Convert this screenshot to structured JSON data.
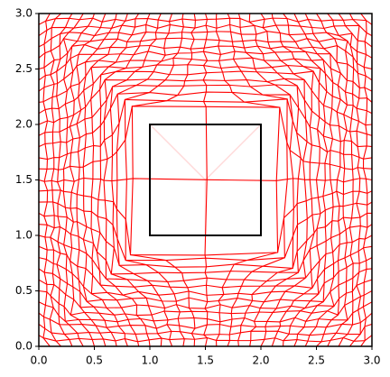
{
  "chart_data": {
    "type": "mesh",
    "xlim": [
      0,
      3
    ],
    "ylim": [
      0,
      3
    ],
    "xticks": [
      {
        "value": 0,
        "label": "0.0"
      },
      0.5,
      {
        "value": 1,
        "label": "1.0"
      },
      1.5,
      {
        "value": 2,
        "label": "2.0"
      },
      2.5,
      {
        "value": 3,
        "label": "3.0"
      }
    ],
    "yticks": [
      {
        "value": 0,
        "label": "0.0"
      },
      0.5,
      {
        "value": 1,
        "label": "1.0"
      },
      1.5,
      {
        "value": 2,
        "label": "2.0"
      },
      2.5,
      {
        "value": 3,
        "label": "3.0"
      }
    ],
    "mesh_color": "#ff0000",
    "rectangle": {
      "x": [
        1,
        2
      ],
      "y": [
        1,
        2
      ],
      "color": "#000000"
    }
  }
}
